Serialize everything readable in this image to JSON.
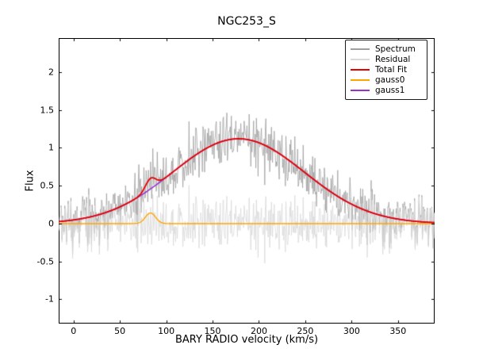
{
  "figure": {
    "background": "#ffffff",
    "frame_color": "#000000"
  },
  "chart_data": {
    "type": "line",
    "title": "NGC253_S",
    "xlabel": "BARY RADIO velocity (km/s)",
    "ylabel": "Flux",
    "xlim": [
      -16,
      389.5
    ],
    "ylim": [
      -1.32,
      2.45
    ],
    "x_ticks": [
      0,
      50,
      100,
      150,
      200,
      250,
      300,
      350
    ],
    "x_tick_labels": [
      "0",
      "50",
      "100",
      "150",
      "200",
      "250",
      "300",
      "350"
    ],
    "y_ticks": [
      2,
      1.5,
      1,
      0.5,
      0,
      -0.5,
      -1
    ],
    "y_tick_labels": [
      "2",
      "1.5",
      "1",
      "0.5",
      "0",
      "-0.5",
      "-1"
    ],
    "grid": false,
    "legend_position": "upper-right",
    "series": [
      {
        "name": "Spectrum",
        "color": "#9f9f9f",
        "line_width": 0.8,
        "kind": "noisy_spectrum",
        "description": "total fit model plus noise",
        "approx_peak_flux": 1.55,
        "approx_noise_min": -0.93
      },
      {
        "name": "Residual",
        "color": "#d9d9d9",
        "line_width": 0.8,
        "kind": "noise_about_zero",
        "mean": 0
      },
      {
        "name": "Total Fit",
        "color": "#e60000",
        "line_width": 1.8,
        "kind": "gaussian_sum",
        "components": [
          "gauss0",
          "gauss1"
        ],
        "peak_flux": 1.13,
        "peak_velocity_kms": 178
      },
      {
        "name": "gauss0",
        "color": "#ffa500",
        "line_width": 1.4,
        "kind": "gaussian",
        "gaussian": {
          "amplitude": 0.14,
          "center": 83,
          "sigma": 5.5
        }
      },
      {
        "name": "gauss1",
        "color": "#9932cc",
        "line_width": 1.6,
        "kind": "gaussian",
        "gaussian": {
          "amplitude": 1.12,
          "center": 178,
          "sigma": 71
        }
      }
    ],
    "noise": {
      "sigma": 0.165,
      "seed": 20,
      "n_points": 676
    },
    "tick_style": {
      "direction": "in",
      "length": 4,
      "color": "#000000"
    }
  },
  "legend": {
    "items": [
      {
        "label": "Spectrum"
      },
      {
        "label": "Residual"
      },
      {
        "label": "Total Fit"
      },
      {
        "label": "gauss0"
      },
      {
        "label": "gauss1"
      }
    ]
  }
}
